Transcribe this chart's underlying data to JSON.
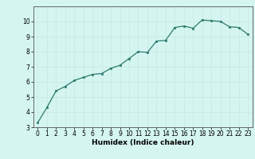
{
  "x": [
    0,
    1,
    2,
    3,
    4,
    5,
    6,
    7,
    8,
    9,
    10,
    11,
    12,
    13,
    14,
    15,
    16,
    17,
    18,
    19,
    20,
    21,
    22,
    23
  ],
  "y": [
    3.3,
    4.3,
    5.4,
    5.7,
    6.1,
    6.3,
    6.5,
    6.55,
    6.9,
    7.1,
    7.55,
    8.0,
    7.95,
    8.7,
    8.75,
    9.6,
    9.7,
    9.55,
    10.1,
    10.05,
    10.0,
    9.65,
    9.6,
    9.15
  ],
  "xlabel": "Humidex (Indice chaleur)",
  "ylim": [
    3,
    11
  ],
  "xlim": [
    -0.5,
    23.5
  ],
  "yticks": [
    3,
    4,
    5,
    6,
    7,
    8,
    9,
    10
  ],
  "xticks": [
    0,
    1,
    2,
    3,
    4,
    5,
    6,
    7,
    8,
    9,
    10,
    11,
    12,
    13,
    14,
    15,
    16,
    17,
    18,
    19,
    20,
    21,
    22,
    23
  ],
  "line_color": "#2d7a6e",
  "marker_color": "#2d7a6e",
  "bg_color": "#d4f5f0",
  "grid_color": "#c8e8e4",
  "tick_fontsize": 5.5,
  "xlabel_fontsize": 6.5
}
